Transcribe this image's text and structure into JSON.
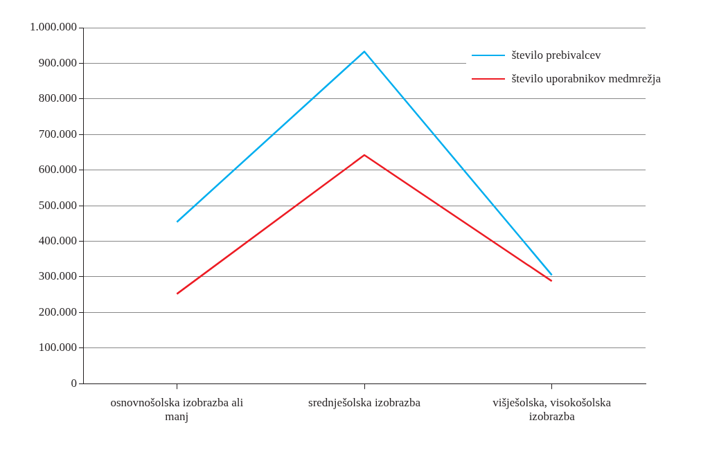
{
  "chart_data": {
    "type": "line",
    "categories": [
      "osnovnošolska izobrazba ali manj",
      "srednješolska izobrazba",
      "višješolska, visokošolska izobrazba"
    ],
    "series": [
      {
        "name": "število prebivalcev",
        "color": "#00aeef",
        "values": [
          454000,
          933000,
          305000
        ]
      },
      {
        "name": "število uporabnikov medmrežja",
        "color": "#ed1c24",
        "values": [
          252000,
          642000,
          288000
        ]
      }
    ],
    "ylim": [
      0,
      1000000
    ],
    "yticks": [
      0,
      {
        "value": 100000,
        "label": "100.000"
      },
      {
        "value": 200000,
        "label": "200.000"
      },
      {
        "value": 300000,
        "label": "300.000"
      },
      {
        "value": 400000,
        "label": "400.000"
      },
      {
        "value": 500000,
        "label": "500.000"
      },
      {
        "value": 600000,
        "label": "600.000"
      },
      {
        "value": 700000,
        "label": "700.000"
      },
      {
        "value": 800000,
        "label": "800.000"
      },
      {
        "value": 900000,
        "label": "900.000"
      },
      {
        "value": 1000000,
        "label": "1.000.000"
      }
    ],
    "grid": "y",
    "legend": "top right",
    "marker": "none",
    "line_style": "solid"
  }
}
